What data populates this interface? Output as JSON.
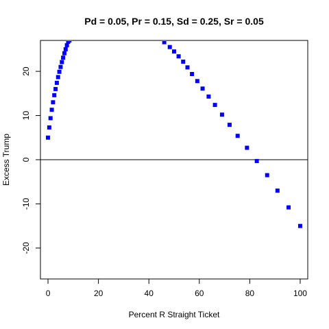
{
  "chart_data": {
    "type": "scatter",
    "title": "Pd = 0.05, Pr = 0.15, Sd = 0.25, Sr = 0.05",
    "xlabel": "Percent R Straight Ticket",
    "ylabel": "Excess Trump",
    "xlim": [
      -3,
      103
    ],
    "ylim": [
      -27,
      27
    ],
    "x_ticks": [
      0,
      20,
      40,
      60,
      80,
      100
    ],
    "y_ticks": [
      -20,
      -10,
      0,
      10,
      20
    ],
    "reference_line_y": 0,
    "grid": false,
    "point_color": "#0000ff",
    "points": [
      [
        0.0,
        5.0
      ],
      [
        0.5,
        7.3
      ],
      [
        1.0,
        9.4
      ],
      [
        1.5,
        11.3
      ],
      [
        2.0,
        13.0
      ],
      [
        2.5,
        14.6
      ],
      [
        3.0,
        16.0
      ],
      [
        3.5,
        17.4
      ],
      [
        4.0,
        18.7
      ],
      [
        4.5,
        19.9
      ],
      [
        5.0,
        21.0
      ],
      [
        5.5,
        22.1
      ],
      [
        6.0,
        23.1
      ],
      [
        6.5,
        24.1
      ],
      [
        7.0,
        25.0
      ],
      [
        7.5,
        25.9
      ],
      [
        8.0,
        26.7
      ],
      [
        8.5,
        27.0
      ],
      [
        46.1,
        26.6
      ],
      [
        48.3,
        25.5
      ],
      [
        50.0,
        24.5
      ],
      [
        51.8,
        23.4
      ],
      [
        53.6,
        22.2
      ],
      [
        55.3,
        20.9
      ],
      [
        57.1,
        19.4
      ],
      [
        59.2,
        17.8
      ],
      [
        61.3,
        16.1
      ],
      [
        63.7,
        14.3
      ],
      [
        66.2,
        12.4
      ],
      [
        69.0,
        10.2
      ],
      [
        72.0,
        7.9
      ],
      [
        75.2,
        5.4
      ],
      [
        78.9,
        2.7
      ],
      [
        82.8,
        -0.3
      ],
      [
        86.9,
        -3.5
      ],
      [
        91.0,
        -7.0
      ],
      [
        95.4,
        -10.8
      ],
      [
        100.0,
        -15.0
      ]
    ]
  }
}
